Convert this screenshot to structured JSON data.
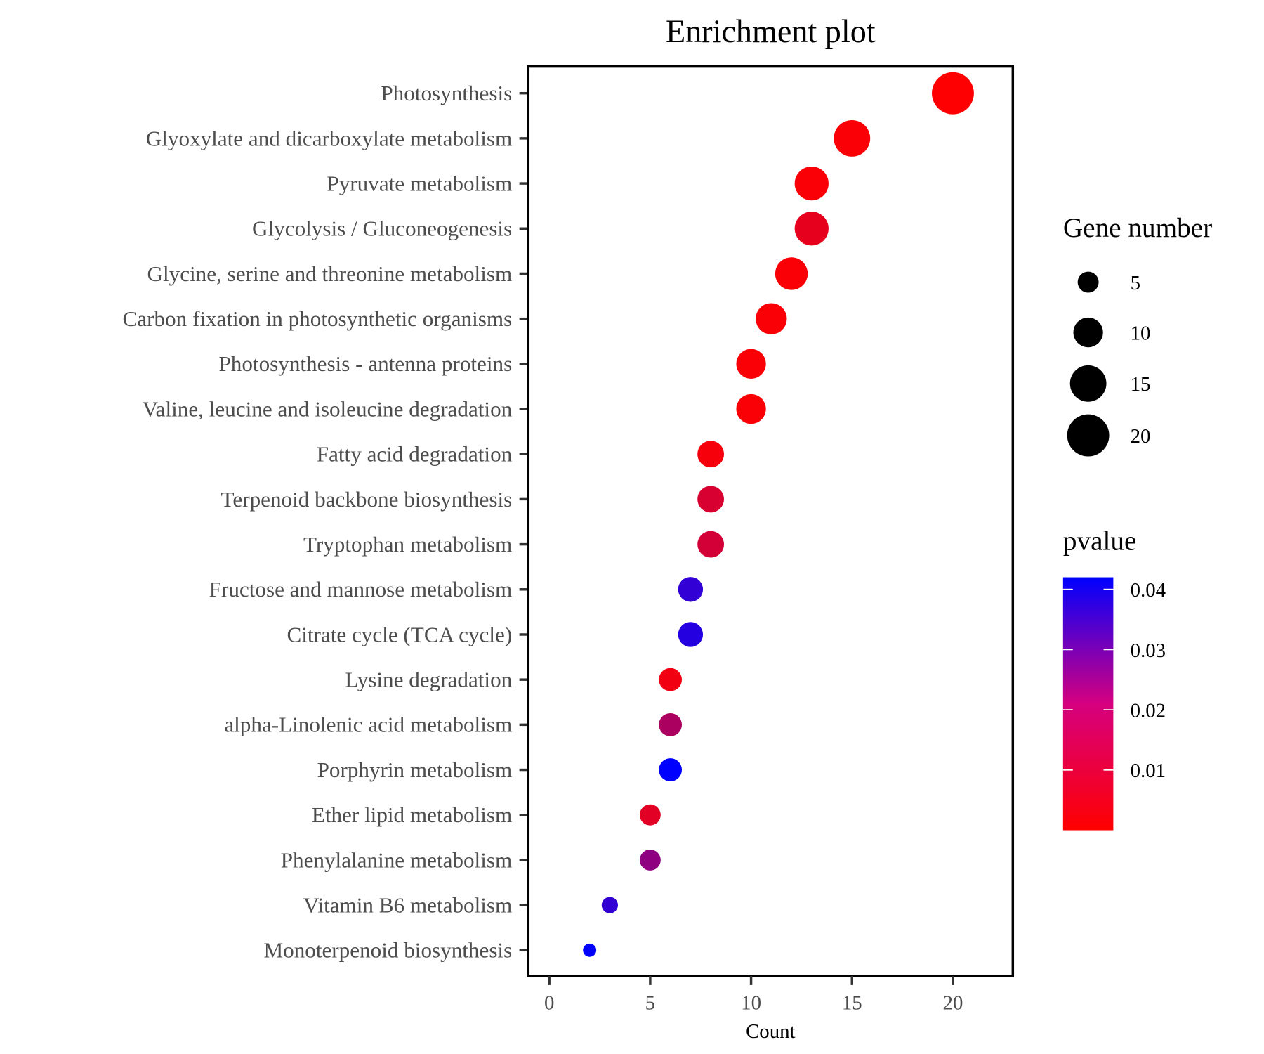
{
  "chart_data": {
    "type": "scatter",
    "title": "Enrichment plot",
    "xlabel": "Count",
    "ylabel": "",
    "xlim": [
      -1.04,
      22.97
    ],
    "xticks": [
      0,
      5,
      10,
      15,
      20
    ],
    "grid": false,
    "categories": [
      "Photosynthesis",
      "Glyoxylate and dicarboxylate metabolism",
      "Pyruvate metabolism",
      "Glycolysis / Gluconeogenesis",
      "Glycine, serine and threonine metabolism",
      "Carbon fixation in photosynthetic organisms",
      "Photosynthesis - antenna proteins",
      "Valine, leucine and isoleucine degradation",
      "Fatty acid degradation",
      "Terpenoid backbone biosynthesis",
      "Tryptophan metabolism",
      "Fructose and mannose metabolism",
      "Citrate cycle (TCA cycle)",
      "Lysine degradation",
      "alpha-Linolenic acid metabolism",
      "Porphyrin metabolism",
      "Ether lipid metabolism",
      "Phenylalanine metabolism",
      "Vitamin B6 metabolism",
      "Monoterpenoid biosynthesis"
    ],
    "count": [
      20,
      15,
      13,
      13,
      12,
      11,
      10,
      10,
      8,
      8,
      8,
      7,
      7,
      6,
      6,
      6,
      5,
      5,
      3,
      2
    ],
    "pvalue": [
      0.0002,
      0.001,
      0.001,
      0.005,
      0.001,
      0.001,
      0.001,
      0.001,
      0.002,
      0.008,
      0.009,
      0.035,
      0.037,
      0.003,
      0.016,
      0.042,
      0.006,
      0.021,
      0.035,
      0.042
    ],
    "size_legend": {
      "title": "Gene number",
      "values": [
        5,
        10,
        15,
        20
      ],
      "labels": [
        "5",
        "10",
        "15",
        "20"
      ]
    },
    "color_legend": {
      "title": "pvalue",
      "range": [
        0,
        0.042
      ],
      "ticks": [
        0.01,
        0.02,
        0.03,
        0.04
      ],
      "labels": [
        "0.01",
        "0.02",
        "0.03",
        "0.04"
      ],
      "low_color": "#FF0000",
      "high_color": "#0000FF"
    },
    "legend_position": "right"
  }
}
